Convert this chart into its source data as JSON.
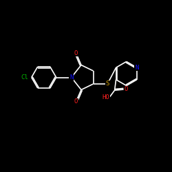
{
  "background_color": "#000000",
  "bond_color": "#ffffff",
  "atom_colors": {
    "N": "#1010ff",
    "O": "#ff2020",
    "S": "#d4a000",
    "Cl": "#00bb00",
    "C": "#ffffff",
    "H": "#ffffff"
  },
  "lw": 1.2,
  "fontsize": 6.5
}
